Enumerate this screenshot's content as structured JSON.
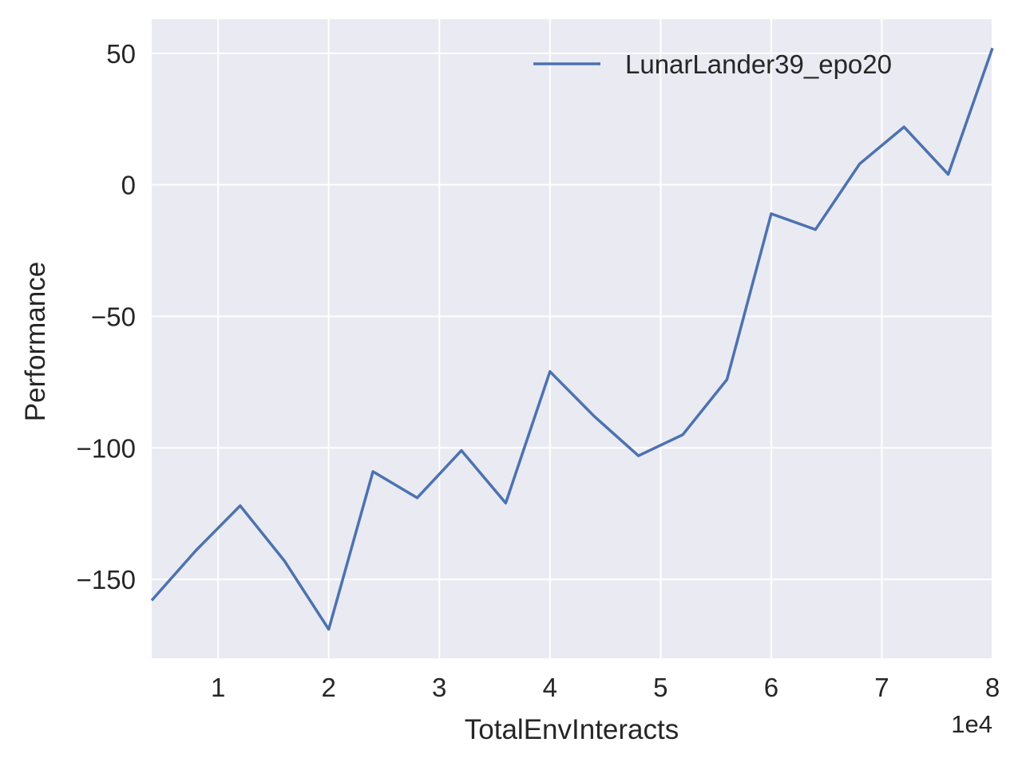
{
  "chart_data": {
    "type": "line",
    "title": "",
    "xlabel": "TotalEnvInteracts",
    "ylabel": "Performance",
    "x_offset_label": "1e4",
    "xlim": [
      4000,
      80000
    ],
    "ylim": [
      -180,
      63
    ],
    "x_ticks": [
      10000,
      20000,
      30000,
      40000,
      50000,
      60000,
      70000,
      80000
    ],
    "x_tick_labels": [
      "1",
      "2",
      "3",
      "4",
      "5",
      "6",
      "7",
      "8"
    ],
    "y_ticks": [
      50,
      0,
      -50,
      -100,
      -150
    ],
    "y_tick_labels": [
      "50",
      "0",
      "−50",
      "−100",
      "−150"
    ],
    "grid": true,
    "legend_position": "top-right",
    "background_color": "#eaeaf2",
    "series": [
      {
        "name": "LunarLander39_epo20",
        "color": "#4c72b0",
        "x": [
          4000,
          8000,
          12000,
          16000,
          20000,
          24000,
          28000,
          32000,
          36000,
          40000,
          44000,
          48000,
          52000,
          56000,
          60000,
          64000,
          68000,
          72000,
          76000,
          80000
        ],
        "y": [
          -158,
          -139,
          -122,
          -143,
          -169,
          -109,
          -119,
          -101,
          -121,
          -71,
          -88,
          -103,
          -95,
          -74,
          -11,
          -17,
          8,
          22,
          4,
          52
        ]
      }
    ]
  }
}
